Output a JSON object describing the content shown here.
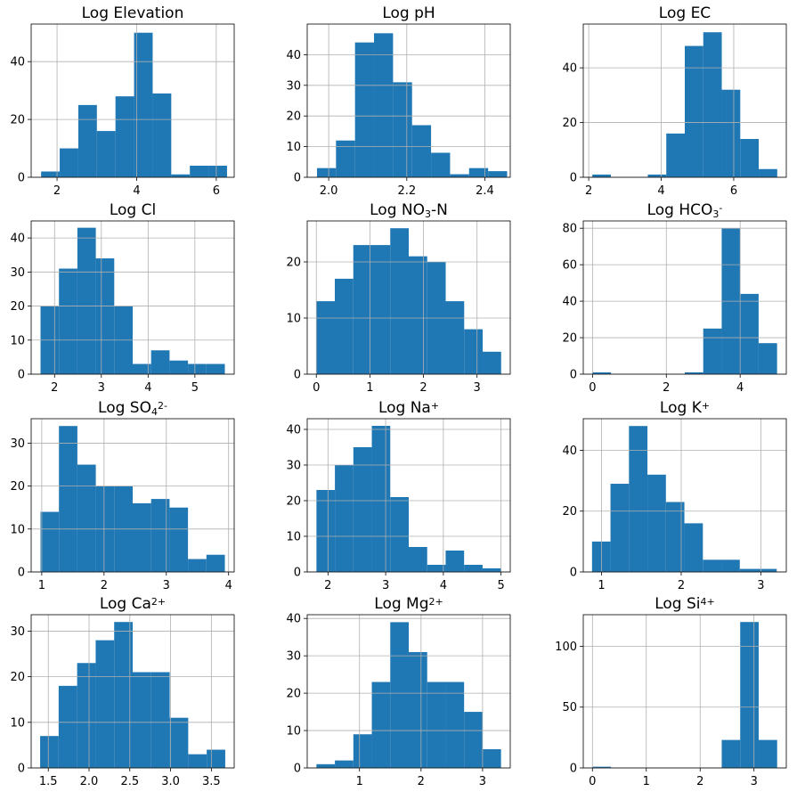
{
  "colors": {
    "bar": "#1f77b4",
    "grid": "#b0b0b0",
    "frame": "#000000"
  },
  "chart_data": [
    {
      "type": "bar",
      "title": "Log Elevation",
      "title_parts": [
        [
          "Log Elevation",
          ""
        ]
      ],
      "bin_start": 1.6,
      "bin_width": 0.467,
      "values": [
        2,
        10,
        25,
        16,
        28,
        50,
        29,
        1,
        4,
        4
      ],
      "xlim": [
        1.35,
        6.45
      ],
      "ylim": [
        0,
        53
      ],
      "xticks": [
        "2",
        "4",
        "6"
      ],
      "yticks": [
        "0",
        "20",
        "40"
      ],
      "grid": true
    },
    {
      "type": "bar",
      "title": "Log pH",
      "title_parts": [
        [
          "Log pH",
          ""
        ]
      ],
      "bin_start": 1.97,
      "bin_width": 0.0487,
      "values": [
        3,
        12,
        44,
        47,
        31,
        17,
        8,
        1,
        3,
        2
      ],
      "xlim": [
        1.945,
        2.465
      ],
      "ylim": [
        0,
        50
      ],
      "xticks": [
        "2.0",
        "2.2",
        "2.4"
      ],
      "yticks": [
        "0",
        "10",
        "20",
        "30",
        "40"
      ],
      "grid": true
    },
    {
      "type": "bar",
      "title": "Log EC",
      "title_parts": [
        [
          "Log EC",
          ""
        ]
      ],
      "bin_start": 2.1,
      "bin_width": 0.51,
      "values": [
        1,
        0,
        0,
        1,
        16,
        48,
        53,
        32,
        14,
        3
      ],
      "xlim": [
        1.85,
        7.45
      ],
      "ylim": [
        0,
        56
      ],
      "xticks": [
        "2",
        "4",
        "6"
      ],
      "yticks": [
        "0",
        "20",
        "40"
      ],
      "grid": true
    },
    {
      "type": "bar",
      "title": "Log Cl-",
      "title_parts": [
        [
          "Log Cl",
          "-"
        ]
      ],
      "bin_start": 1.7,
      "bin_width": 0.394,
      "values": [
        20,
        31,
        43,
        34,
        20,
        3,
        7,
        4,
        3,
        3
      ],
      "xlim": [
        1.5,
        5.84
      ],
      "ylim": [
        0,
        45
      ],
      "xticks": [
        "2",
        "3",
        "4",
        "5"
      ],
      "yticks": [
        "0",
        "10",
        "20",
        "30",
        "40"
      ],
      "grid": true
    },
    {
      "type": "bar",
      "title": "Log NO3--N",
      "title_parts": [
        [
          "Log NO",
          ""
        ],
        [
          "3",
          "sub"
        ],
        [
          "-N",
          ""
        ]
      ],
      "bin_start": 0.0,
      "bin_width": 0.345,
      "values": [
        13,
        17,
        23,
        23,
        26,
        21,
        20,
        13,
        8,
        4
      ],
      "xlim": [
        -0.17,
        3.62
      ],
      "ylim": [
        0,
        27.3
      ],
      "xticks": [
        "0",
        "1",
        "2",
        "3"
      ],
      "yticks": [
        "0",
        "10",
        "20"
      ],
      "grid": true
    },
    {
      "type": "bar",
      "title": "Log HCO3-",
      "title_parts": [
        [
          "Log HCO",
          ""
        ],
        [
          "3",
          "sub"
        ],
        [
          "-",
          "sup"
        ]
      ],
      "bin_start": 0.0,
      "bin_width": 0.5,
      "values": [
        1,
        0,
        0,
        0,
        0,
        1,
        25,
        80,
        44,
        17
      ],
      "xlim": [
        -0.25,
        5.25
      ],
      "ylim": [
        0,
        84
      ],
      "xticks": [
        "0",
        "2",
        "4"
      ],
      "yticks": [
        "0",
        "20",
        "40",
        "60",
        "80"
      ],
      "grid": true
    },
    {
      "type": "bar",
      "title": "Log SO42-",
      "title_parts": [
        [
          "Log SO",
          ""
        ],
        [
          "4",
          "sub"
        ],
        [
          "2-",
          "sup"
        ]
      ],
      "bin_start": 0.98,
      "bin_width": 0.296,
      "values": [
        14,
        34,
        25,
        20,
        20,
        16,
        17,
        15,
        3,
        4
      ],
      "xlim": [
        0.83,
        4.09
      ],
      "ylim": [
        0,
        35.7
      ],
      "xticks": [
        "1",
        "2",
        "3",
        "4"
      ],
      "yticks": [
        "0",
        "10",
        "20",
        "30"
      ],
      "grid": true
    },
    {
      "type": "bar",
      "title": "Log Na+",
      "title_parts": [
        [
          "Log Na",
          ""
        ],
        [
          "+",
          "sup"
        ]
      ],
      "bin_start": 1.8,
      "bin_width": 0.32,
      "values": [
        23,
        30,
        35,
        41,
        21,
        7,
        2,
        6,
        2,
        1
      ],
      "xlim": [
        1.64,
        5.16
      ],
      "ylim": [
        0,
        43
      ],
      "xticks": [
        "2",
        "3",
        "4",
        "5"
      ],
      "yticks": [
        "0",
        "10",
        "20",
        "30",
        "40"
      ],
      "grid": true
    },
    {
      "type": "bar",
      "title": "Log K+",
      "title_parts": [
        [
          "Log K",
          ""
        ],
        [
          "+",
          "sup"
        ]
      ],
      "bin_start": 0.88,
      "bin_width": 0.232,
      "values": [
        10,
        29,
        48,
        32,
        23,
        16,
        4,
        4,
        1,
        1
      ],
      "xlim": [
        0.77,
        3.32
      ],
      "ylim": [
        0,
        50.4
      ],
      "xticks": [
        "1",
        "2",
        "3"
      ],
      "yticks": [
        "0",
        "20",
        "40"
      ],
      "grid": true
    },
    {
      "type": "bar",
      "title": "Log Ca2+",
      "title_parts": [
        [
          "Log Ca",
          ""
        ],
        [
          "2+",
          "sup"
        ]
      ],
      "bin_start": 1.4,
      "bin_width": 0.227,
      "values": [
        7,
        18,
        23,
        28,
        32,
        21,
        21,
        11,
        3,
        4
      ],
      "xlim": [
        1.29,
        3.78
      ],
      "ylim": [
        0,
        33.6
      ],
      "xticks": [
        "1.5",
        "2.0",
        "2.5",
        "3.0",
        "3.5"
      ],
      "yticks": [
        "0",
        "10",
        "20",
        "30"
      ],
      "grid": true
    },
    {
      "type": "bar",
      "title": "Log Mg2+",
      "title_parts": [
        [
          "Log Mg",
          ""
        ],
        [
          "2+",
          "sup"
        ]
      ],
      "bin_start": 0.3,
      "bin_width": 0.3,
      "values": [
        1,
        2,
        9,
        23,
        39,
        31,
        23,
        23,
        15,
        5
      ],
      "xlim": [
        0.15,
        3.45
      ],
      "ylim": [
        0,
        41
      ],
      "xticks": [
        "1",
        "2",
        "3"
      ],
      "yticks": [
        "0",
        "10",
        "20",
        "30",
        "40"
      ],
      "grid": true
    },
    {
      "type": "bar",
      "title": "Log Si4+",
      "title_parts": [
        [
          "Log Si",
          ""
        ],
        [
          "4+",
          "sup"
        ]
      ],
      "bin_start": 0.0,
      "bin_width": 0.343,
      "values": [
        1,
        0,
        0,
        0,
        0,
        0,
        0,
        23,
        120,
        23
      ],
      "xlim": [
        -0.17,
        3.6
      ],
      "ylim": [
        0,
        126
      ],
      "xticks": [
        "0",
        "1",
        "2",
        "3"
      ],
      "yticks": [
        "0",
        "50",
        "100"
      ],
      "grid": true
    }
  ]
}
